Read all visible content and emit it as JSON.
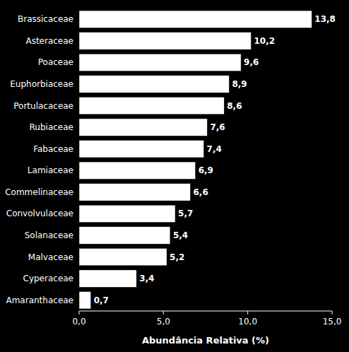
{
  "chart_data": {
    "type": "bar",
    "orientation": "horizontal",
    "xlabel": "Abundância Relativa (%)",
    "categories": [
      "Brassicaceae",
      "Asteraceae",
      "Poaceae",
      "Euphorbiaceae",
      "Portulacaceae",
      "Rubiaceae",
      "Fabaceae",
      "Lamiaceae",
      "Commelinaceae",
      "Convolvulaceae",
      "Solanaceae",
      "Malvaceae",
      "Cyperaceae",
      "Amaranthaceae"
    ],
    "values": [
      13.8,
      10.2,
      9.6,
      8.9,
      8.6,
      7.6,
      7.4,
      6.9,
      6.6,
      5.7,
      5.4,
      5.2,
      3.4,
      0.7
    ],
    "value_labels": [
      "13,8",
      "10,2",
      "9,6",
      "8,9",
      "8,6",
      "7,6",
      "7,4",
      "6,9",
      "6,6",
      "5,7",
      "5,4",
      "5,2",
      "3,4",
      "0,7"
    ],
    "data_labels": true,
    "color": "#ffffff",
    "xlim": [
      0,
      15.0
    ],
    "xticks": [
      {
        "value": 0.0,
        "label": "0,0"
      },
      {
        "value": 5.0,
        "label": "5,0"
      },
      {
        "value": 10.0,
        "label": "10,0"
      },
      {
        "value": 15.0,
        "label": "15,0"
      }
    ],
    "grid": false
  }
}
